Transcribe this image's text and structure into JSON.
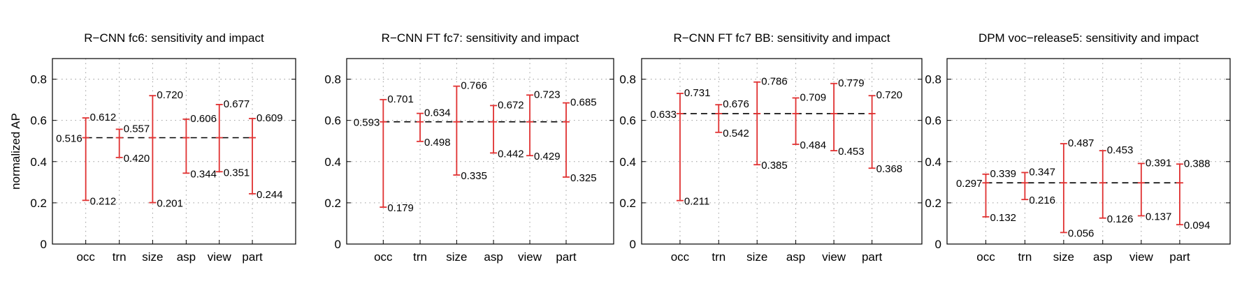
{
  "chart_data": [
    {
      "type": "errorbar",
      "title": "R−CNN fc6: sensitivity and impact",
      "ylabel": "normalized AP",
      "xlabel": "",
      "ylim": [
        0,
        0.9
      ],
      "yticks": [
        0,
        0.2,
        0.4,
        0.6,
        0.8
      ],
      "ytick_labels": [
        "0",
        "0.2",
        "0.4",
        "0.6",
        "0.8"
      ],
      "grid": true,
      "categories": [
        "occ",
        "trn",
        "size",
        "asp",
        "view",
        "part"
      ],
      "overall": 0.516,
      "overall_label": "0.516",
      "max": [
        0.612,
        0.557,
        0.72,
        0.606,
        0.677,
        0.609
      ],
      "max_labels": [
        "0.612",
        "0.557",
        "0.720",
        "0.606",
        "0.677",
        "0.609"
      ],
      "min": [
        0.212,
        0.42,
        0.201,
        0.344,
        0.351,
        0.244
      ],
      "min_labels": [
        "0.212",
        "0.420",
        "0.201",
        "0.344",
        "0.351",
        "0.244"
      ]
    },
    {
      "type": "errorbar",
      "title": "R−CNN FT fc7: sensitivity and impact",
      "ylabel": "",
      "xlabel": "",
      "ylim": [
        0,
        0.9
      ],
      "yticks": [
        0,
        0.2,
        0.4,
        0.6,
        0.8
      ],
      "ytick_labels": [
        "0",
        "0.2",
        "0.4",
        "0.6",
        "0.8"
      ],
      "grid": true,
      "categories": [
        "occ",
        "trn",
        "size",
        "asp",
        "view",
        "part"
      ],
      "overall": 0.593,
      "overall_label": "0.593",
      "max": [
        0.701,
        0.634,
        0.766,
        0.672,
        0.723,
        0.685
      ],
      "max_labels": [
        "0.701",
        "0.634",
        "0.766",
        "0.672",
        "0.723",
        "0.685"
      ],
      "min": [
        0.179,
        0.498,
        0.335,
        0.442,
        0.429,
        0.325
      ],
      "min_labels": [
        "0.179",
        "0.498",
        "0.335",
        "0.442",
        "0.429",
        "0.325"
      ]
    },
    {
      "type": "errorbar",
      "title": "R−CNN FT fc7 BB: sensitivity and impact",
      "ylabel": "",
      "xlabel": "",
      "ylim": [
        0,
        0.9
      ],
      "yticks": [
        0,
        0.2,
        0.4,
        0.6,
        0.8
      ],
      "ytick_labels": [
        "0",
        "0.2",
        "0.4",
        "0.6",
        "0.8"
      ],
      "grid": true,
      "categories": [
        "occ",
        "trn",
        "size",
        "asp",
        "view",
        "part"
      ],
      "overall": 0.633,
      "overall_label": "0.633",
      "max": [
        0.731,
        0.676,
        0.786,
        0.709,
        0.779,
        0.72
      ],
      "max_labels": [
        "0.731",
        "0.676",
        "0.786",
        "0.709",
        "0.779",
        "0.720"
      ],
      "min": [
        0.211,
        0.542,
        0.385,
        0.484,
        0.453,
        0.368
      ],
      "min_labels": [
        "0.211",
        "0.542",
        "0.385",
        "0.484",
        "0.453",
        "0.368"
      ]
    },
    {
      "type": "errorbar",
      "title": "DPM voc−release5: sensitivity and impact",
      "ylabel": "",
      "xlabel": "",
      "ylim": [
        0,
        0.9
      ],
      "yticks": [
        0,
        0.2,
        0.4,
        0.6,
        0.8
      ],
      "ytick_labels": [
        "0",
        "0.2",
        "0.4",
        "0.6",
        "0.8"
      ],
      "grid": true,
      "categories": [
        "occ",
        "trn",
        "size",
        "asp",
        "view",
        "part"
      ],
      "overall": 0.297,
      "overall_label": "0.297",
      "max": [
        0.339,
        0.347,
        0.487,
        0.453,
        0.391,
        0.388
      ],
      "max_labels": [
        "0.339",
        "0.347",
        "0.487",
        "0.453",
        "0.391",
        "0.388"
      ],
      "min": [
        0.132,
        0.216,
        0.056,
        0.126,
        0.137,
        0.094
      ],
      "min_labels": [
        "0.132",
        "0.216",
        "0.056",
        "0.126",
        "0.137",
        "0.094"
      ]
    }
  ],
  "colors": {
    "errorbar": "#e03131",
    "grid": "#9a9a9a",
    "axis": "#000000",
    "overall_line": "#000000"
  }
}
